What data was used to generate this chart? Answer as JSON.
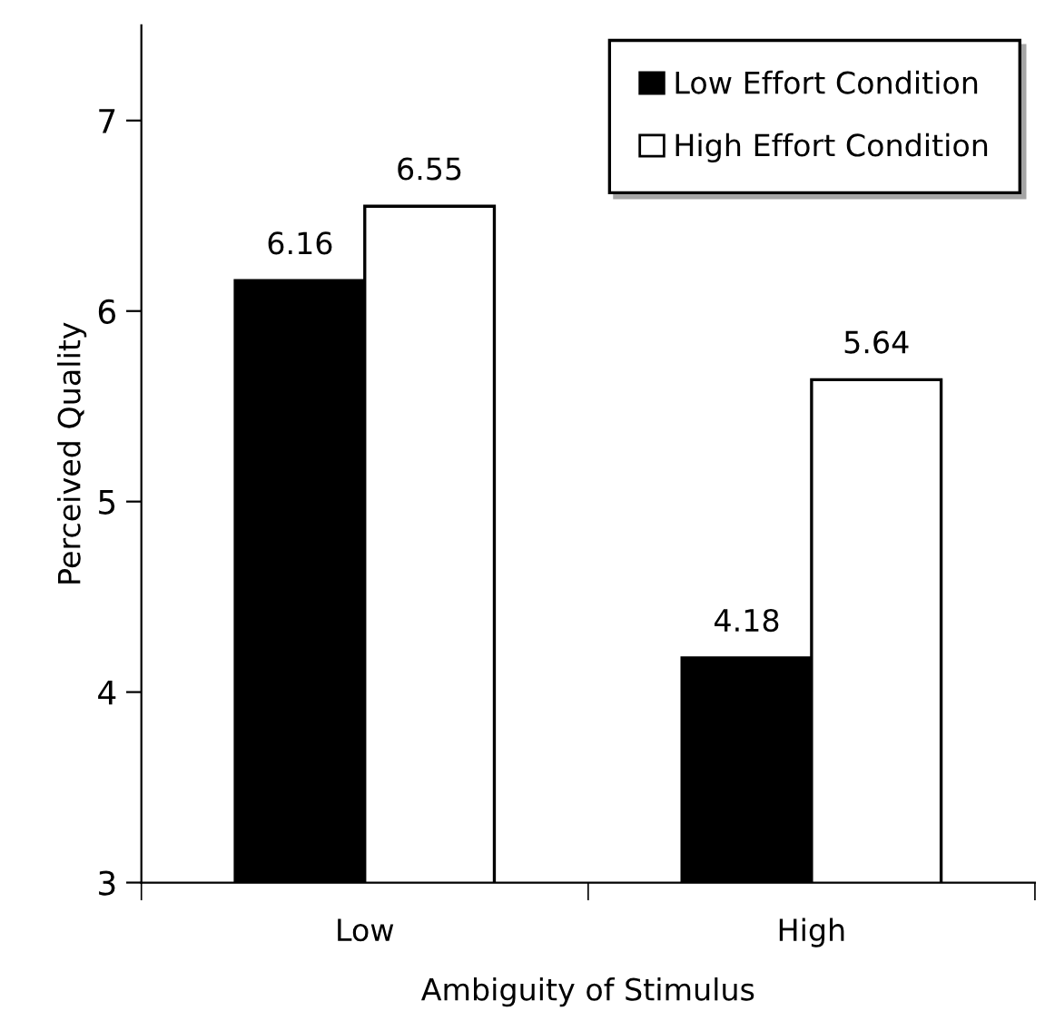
{
  "chart_data": {
    "type": "bar",
    "xlabel": "Ambiguity of Stimulus",
    "ylabel": "Perceived Quality",
    "categories": [
      "Low",
      "High"
    ],
    "series": [
      {
        "name": "Low Effort Condition",
        "color": "#000000",
        "values": [
          6.16,
          4.18
        ]
      },
      {
        "name": "High Effort Condition",
        "color": "#ffffff",
        "values": [
          6.55,
          5.64
        ]
      }
    ],
    "ylim": [
      3,
      7.5
    ],
    "yticks": [
      3,
      4,
      5,
      6,
      7
    ],
    "data_labels": true,
    "grid": false,
    "legend": "top right"
  }
}
